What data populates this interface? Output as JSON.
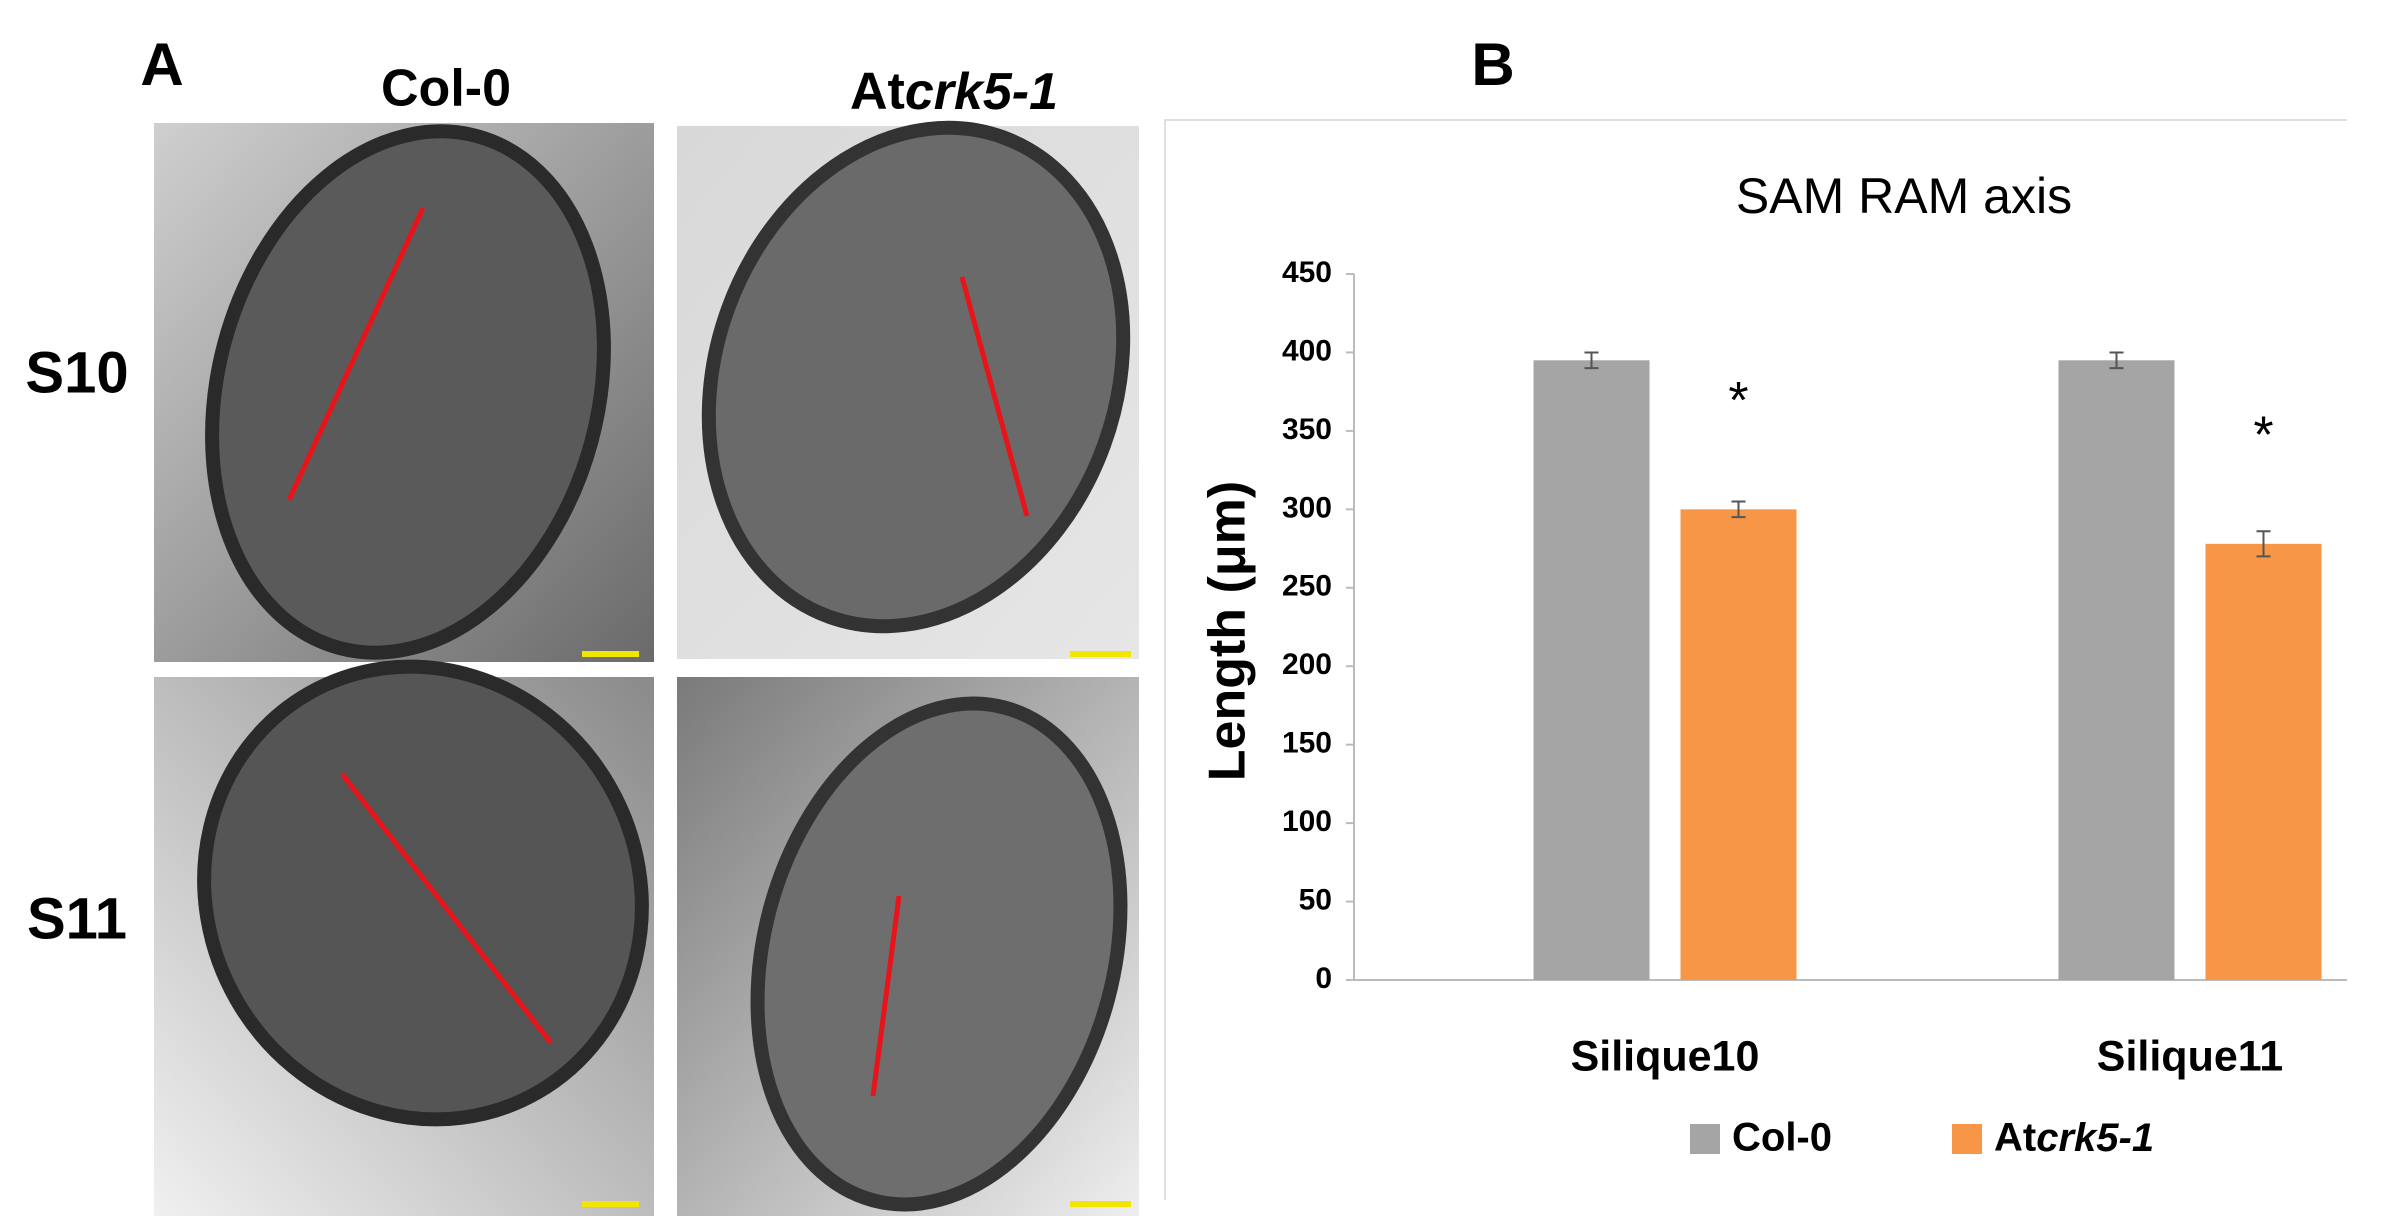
{
  "panel_a": {
    "label": "A",
    "columns": [
      "Col-0",
      "Atcrk5-1"
    ],
    "rows": [
      "S10",
      "S11"
    ]
  },
  "chart_data": {
    "type": "bar",
    "panel_label": "B",
    "title": "SAM RAM axis",
    "y_label": "Length (μm)",
    "categories": [
      "Silique10",
      "Silique11"
    ],
    "series": [
      {
        "name": "Col-0",
        "color": "#a5a5a5",
        "values": [
          395,
          395
        ],
        "errors": [
          5,
          5
        ]
      },
      {
        "name": "Atcrk5-1",
        "color": "#f79646",
        "values": [
          300,
          278
        ],
        "errors": [
          5,
          8
        ],
        "annotations": [
          "*",
          "*"
        ]
      }
    ],
    "ylim": [
      0,
      450
    ],
    "yticks": [
      0,
      50,
      100,
      150,
      200,
      250,
      300,
      350,
      400,
      450
    ],
    "grid": false,
    "legend": "bottom"
  }
}
